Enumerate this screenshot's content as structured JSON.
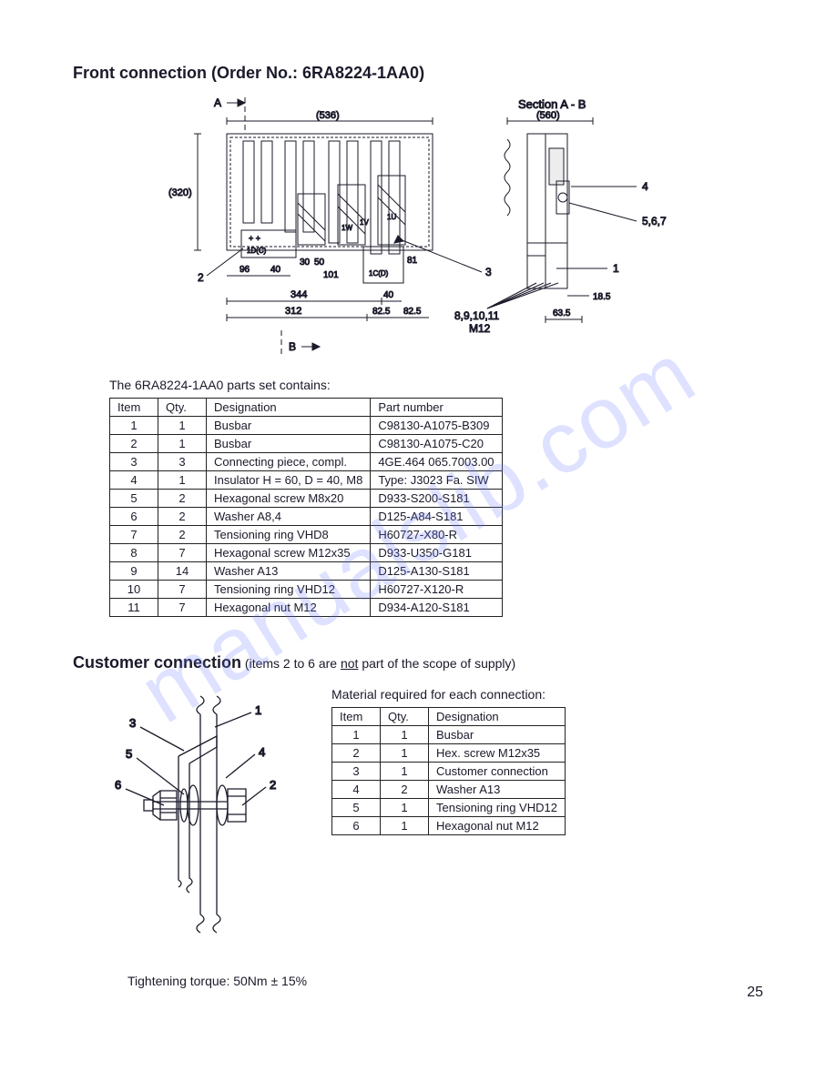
{
  "watermark": "manualslib.com",
  "page_number": "25",
  "front": {
    "title_prefix": "Front connection  (Order No.: ",
    "order_no": "6RA8224-1AA0",
    "title_suffix": ")",
    "caption": "The 6RA8224-1AA0  parts set contains:",
    "diagram": {
      "stroke": "#1a1a2a",
      "text_color": "#1a1a2a",
      "font_size": 11,
      "labels": {
        "A": "A",
        "B": "B",
        "section": "Section A - B",
        "d536": "(536)",
        "d560": "(560)",
        "d320": "(320)",
        "d96": "96",
        "d40a": "40",
        "d30": "30",
        "d50": "50",
        "d101": "101",
        "d344": "344",
        "d312": "312",
        "d82a": "82.5",
        "d82b": "82.5",
        "d40b": "40",
        "d81": "81",
        "d18_5": "18.5",
        "d63_5": "63.5",
        "t1D": "1D(C)",
        "t1C": "1C(D)",
        "t1U": "1U",
        "t1V": "1V",
        "t1W": "1W",
        "c1": "1",
        "c2": "2",
        "c3": "3",
        "c4": "4",
        "c567": "5,6,7",
        "c891011": "8,9,10,11",
        "cM12": "M12"
      }
    },
    "table": {
      "headers": [
        "Item",
        "Qty.",
        "Designation",
        "Part number"
      ],
      "rows": [
        [
          "1",
          "1",
          "Busbar",
          "C98130-A1075-B309"
        ],
        [
          "2",
          "1",
          "Busbar",
          "C98130-A1075-C20"
        ],
        [
          "3",
          "3",
          "Connecting piece, compl.",
          "4GE.464 065.7003.00"
        ],
        [
          "4",
          "1",
          "Insulator  H = 60, D = 40, M8",
          "Type: J3023 Fa. SIW"
        ],
        [
          "5",
          "2",
          "Hexagonal screw M8x20",
          "D933-S200-S181"
        ],
        [
          "6",
          "2",
          "Washer A8,4",
          "D125-A84-S181"
        ],
        [
          "7",
          "2",
          "Tensioning ring VHD8",
          "H60727-X80-R"
        ],
        [
          "8",
          "7",
          "Hexagonal screw  M12x35",
          "D933-U350-G181"
        ],
        [
          "9",
          "14",
          "Washer A13",
          "D125-A130-S181"
        ],
        [
          "10",
          "7",
          "Tensioning ring VHD12",
          "H60727-X120-R"
        ],
        [
          "11",
          "7",
          "Hexagonal nut  M12",
          "D934-A120-S181"
        ]
      ]
    }
  },
  "customer": {
    "title": "Customer connection",
    "note_pre": " (items 2 to 6 are ",
    "note_not": "not",
    "note_post": " part of the scope of supply)",
    "material_caption": "Material required for each connection:",
    "torque": "Tightening torque: 50Nm  ± 15%",
    "diagram": {
      "stroke": "#1a1a2a",
      "labels": {
        "c1": "1",
        "c2": "2",
        "c3": "3",
        "c4": "4",
        "c5": "5",
        "c6": "6"
      }
    },
    "table": {
      "headers": [
        "Item",
        "Qty.",
        "Designation"
      ],
      "rows": [
        [
          "1",
          "1",
          "Busbar"
        ],
        [
          "2",
          "1",
          "Hex. screw  M12x35"
        ],
        [
          "3",
          "1",
          "Customer connection"
        ],
        [
          "4",
          "2",
          "Washer A13"
        ],
        [
          "5",
          "1",
          "Tensioning ring VHD12"
        ],
        [
          "6",
          "1",
          "Hexagonal nut M12"
        ]
      ]
    }
  }
}
